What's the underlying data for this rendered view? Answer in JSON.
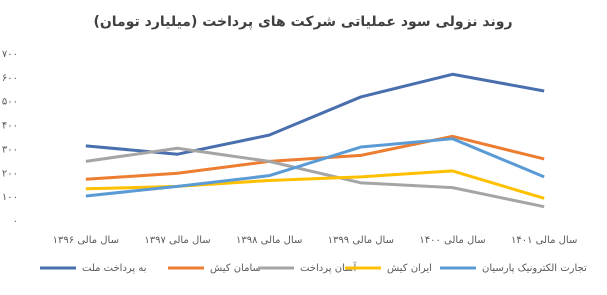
{
  "chart_data": {
    "type": "line",
    "title": "روند نزولی سود عملیاتی شرکت های پرداخت (میلیارد تومان)",
    "categories": [
      "سال مالی ۱۳۹۶",
      "سال مالی ۱۳۹۷",
      "سال مالی ۱۳۹۸",
      "سال مالی ۱۳۹۹",
      "سال مالی ۱۴۰۰",
      "سال مالی ۱۴۰۱"
    ],
    "series": [
      {
        "name": "به پرداخت ملت",
        "color": "#4a6fae",
        "values": [
          315,
          280,
          360,
          520,
          615,
          545
        ]
      },
      {
        "name": "سامان کیش",
        "color": "#ed7d31",
        "values": [
          175,
          200,
          250,
          275,
          355,
          260
        ]
      },
      {
        "name": "آسان پرداخت",
        "color": "#a5a5a5",
        "values": [
          250,
          305,
          250,
          160,
          140,
          60
        ]
      },
      {
        "name": "ایران کیش",
        "color": "#ffc000",
        "values": [
          135,
          145,
          170,
          185,
          210,
          95
        ]
      },
      {
        "name": "تجارت الکترونیک پارسیان",
        "color": "#5b9bd5",
        "values": [
          105,
          145,
          190,
          310,
          345,
          185
        ]
      }
    ],
    "ylim": [
      0,
      700
    ],
    "yticks": [
      {
        "value": 0,
        "label": "۰"
      },
      {
        "value": 100,
        "label": "۱۰۰"
      },
      {
        "value": 200,
        "label": "۲۰۰"
      },
      {
        "value": 300,
        "label": "۳۰۰"
      },
      {
        "value": 400,
        "label": "۴۰۰"
      },
      {
        "value": 500,
        "label": "۵۰۰"
      },
      {
        "value": 600,
        "label": "۶۰۰"
      },
      {
        "value": 700,
        "label": "۷۰۰"
      }
    ],
    "grid": false
  }
}
